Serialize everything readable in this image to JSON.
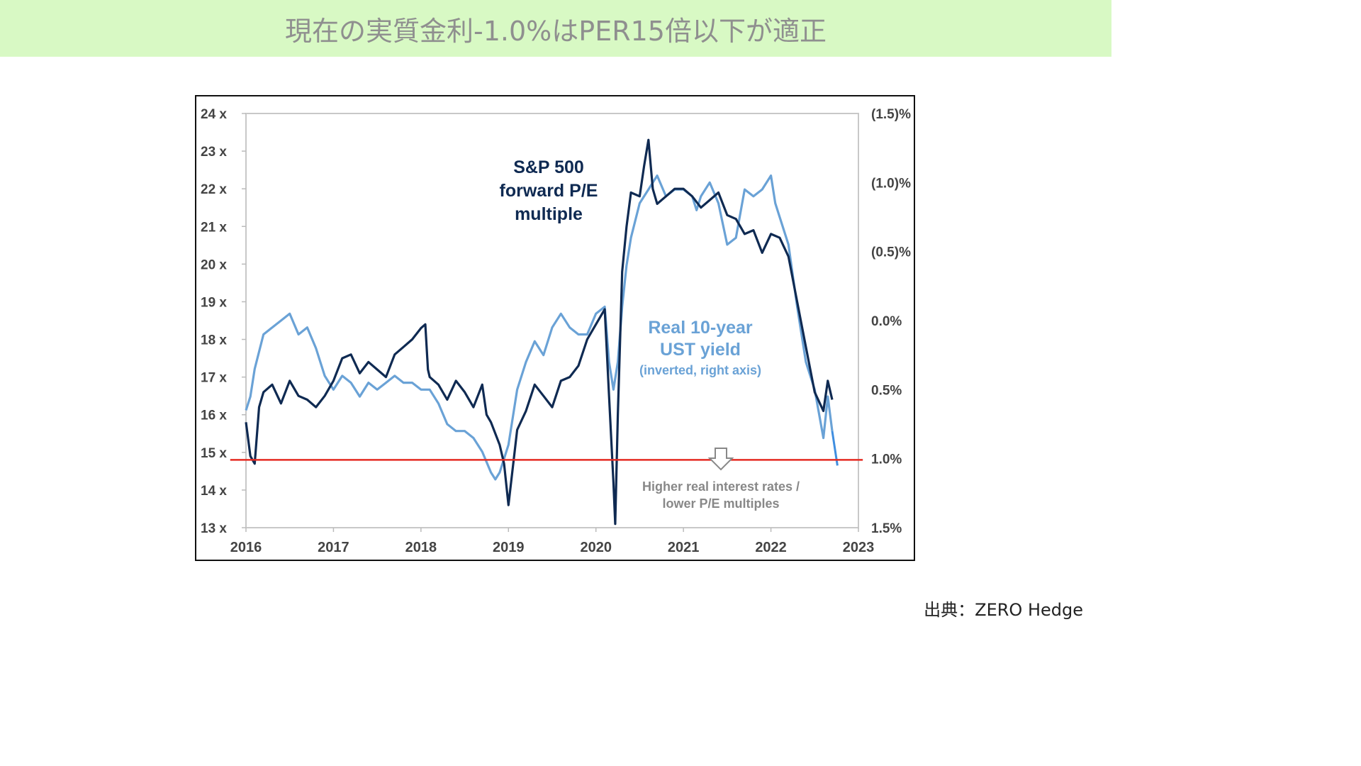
{
  "header": {
    "title": "現在の実質金利-1.0%はPER15倍以下が適正"
  },
  "footer": {
    "source": "出典：ZERO Hedge"
  },
  "colors": {
    "banner_bg": "#d8f9c4",
    "pe_series": "#0f2a52",
    "yield_series": "#6aa2d6",
    "reference_line": "#e52b22",
    "extension_line": "#3f8ee0"
  },
  "chart_data": {
    "type": "line",
    "title": "",
    "x_ticks": [
      "2016",
      "2017",
      "2018",
      "2019",
      "2020",
      "2021",
      "2022",
      "2023"
    ],
    "xlim": [
      2016,
      2023
    ],
    "left_axis": {
      "ticks": [
        "24 x",
        "23 x",
        "22 x",
        "21 x",
        "20 x",
        "19 x",
        "18 x",
        "17 x",
        "16 x",
        "15 x",
        "14 x",
        "13 x"
      ],
      "ylim": [
        13,
        24
      ]
    },
    "right_axis": {
      "ticks": [
        "(1.5)%",
        "(1.0)%",
        "(0.5)%",
        "0.0%",
        "0.5%",
        "1.0%",
        "1.5%"
      ],
      "ylim_inverted": [
        -1.5,
        1.5
      ]
    },
    "annotations": {
      "pe_label": [
        "S&P 500",
        "forward P/E",
        "multiple"
      ],
      "yield_label": [
        "Real 10-year",
        "UST yield"
      ],
      "yield_sub": "(inverted, right axis)",
      "arrow_note": [
        "Higher real interest rates /",
        "lower P/E multiples"
      ]
    },
    "reference_line": {
      "pe": 14.8,
      "x_from": 2015.82,
      "x_to": 2023.05
    },
    "series": [
      {
        "axis": "left",
        "x": [
          2016.0,
          2016.05,
          2016.1,
          2016.15,
          2016.2,
          2016.3,
          2016.4,
          2016.5,
          2016.6,
          2016.7,
          2016.8,
          2016.9,
          2017.0,
          2017.1,
          2017.2,
          2017.3,
          2017.4,
          2017.5,
          2017.6,
          2017.7,
          2017.8,
          2017.9,
          2018.0,
          2018.05,
          2018.08,
          2018.1,
          2018.2,
          2018.3,
          2018.4,
          2018.5,
          2018.6,
          2018.7,
          2018.75,
          2018.8,
          2018.9,
          2018.95,
          2019.0,
          2019.1,
          2019.2,
          2019.3,
          2019.4,
          2019.5,
          2019.6,
          2019.7,
          2019.8,
          2019.9,
          2020.0,
          2020.1,
          2020.15,
          2020.2,
          2020.22,
          2020.25,
          2020.3,
          2020.35,
          2020.4,
          2020.5,
          2020.55,
          2020.6,
          2020.65,
          2020.7,
          2020.8,
          2020.9,
          2021.0,
          2021.1,
          2021.2,
          2021.3,
          2021.4,
          2021.5,
          2021.6,
          2021.7,
          2021.8,
          2021.9,
          2022.0,
          2022.1,
          2022.2,
          2022.3,
          2022.4,
          2022.5,
          2022.6,
          2022.65,
          2022.7
        ],
        "values": [
          15.8,
          14.9,
          14.7,
          16.2,
          16.6,
          16.8,
          16.3,
          16.9,
          16.5,
          16.4,
          16.2,
          16.5,
          16.9,
          17.5,
          17.6,
          17.1,
          17.4,
          17.2,
          17.0,
          17.6,
          17.8,
          18.0,
          18.3,
          18.4,
          17.2,
          17.0,
          16.8,
          16.4,
          16.9,
          16.6,
          16.2,
          16.8,
          16.0,
          15.8,
          15.2,
          14.7,
          13.6,
          15.6,
          16.1,
          16.8,
          16.5,
          16.2,
          16.9,
          17.0,
          17.3,
          18.0,
          18.4,
          18.8,
          16.5,
          14.2,
          13.1,
          16.0,
          19.8,
          21.0,
          21.9,
          21.8,
          22.6,
          23.3,
          22.0,
          21.6,
          21.8,
          22.0,
          22.0,
          21.8,
          21.5,
          21.7,
          21.9,
          21.3,
          21.2,
          20.8,
          20.9,
          20.3,
          20.8,
          20.7,
          20.2,
          19.0,
          17.8,
          16.6,
          16.1,
          16.9,
          16.4
        ]
      },
      {
        "axis": "right",
        "x": [
          2016.0,
          2016.05,
          2016.1,
          2016.2,
          2016.3,
          2016.4,
          2016.5,
          2016.6,
          2016.7,
          2016.8,
          2016.9,
          2017.0,
          2017.1,
          2017.2,
          2017.3,
          2017.4,
          2017.5,
          2017.6,
          2017.7,
          2017.8,
          2017.9,
          2018.0,
          2018.1,
          2018.2,
          2018.3,
          2018.4,
          2018.5,
          2018.6,
          2018.7,
          2018.8,
          2018.85,
          2018.9,
          2019.0,
          2019.1,
          2019.2,
          2019.3,
          2019.4,
          2019.5,
          2019.6,
          2019.7,
          2019.8,
          2019.9,
          2020.0,
          2020.1,
          2020.15,
          2020.2,
          2020.25,
          2020.3,
          2020.35,
          2020.4,
          2020.5,
          2020.6,
          2020.7,
          2020.8,
          2020.9,
          2021.0,
          2021.1,
          2021.15,
          2021.2,
          2021.3,
          2021.4,
          2021.5,
          2021.6,
          2021.7,
          2021.8,
          2021.9,
          2022.0,
          2022.05,
          2022.1,
          2022.2,
          2022.3,
          2022.4,
          2022.5,
          2022.6,
          2022.65,
          2022.7
        ],
        "values": [
          0.65,
          0.55,
          0.35,
          0.1,
          0.05,
          0.0,
          -0.05,
          0.1,
          0.05,
          0.2,
          0.4,
          0.5,
          0.4,
          0.45,
          0.55,
          0.45,
          0.5,
          0.45,
          0.4,
          0.45,
          0.45,
          0.5,
          0.5,
          0.6,
          0.75,
          0.8,
          0.8,
          0.85,
          0.95,
          1.1,
          1.15,
          1.1,
          0.9,
          0.5,
          0.3,
          0.15,
          0.25,
          0.05,
          -0.05,
          0.05,
          0.1,
          0.1,
          -0.05,
          -0.1,
          0.3,
          0.5,
          0.3,
          -0.1,
          -0.4,
          -0.6,
          -0.85,
          -0.95,
          -1.05,
          -0.9,
          -0.95,
          -0.95,
          -0.9,
          -0.8,
          -0.9,
          -1.0,
          -0.85,
          -0.55,
          -0.6,
          -0.95,
          -0.9,
          -0.95,
          -1.05,
          -0.85,
          -0.75,
          -0.55,
          -0.1,
          0.3,
          0.5,
          0.85,
          0.55,
          0.8
        ]
      },
      {
        "axis": "right",
        "x": [
          2022.7,
          2022.76
        ],
        "values": [
          0.8,
          1.05
        ]
      }
    ]
  }
}
